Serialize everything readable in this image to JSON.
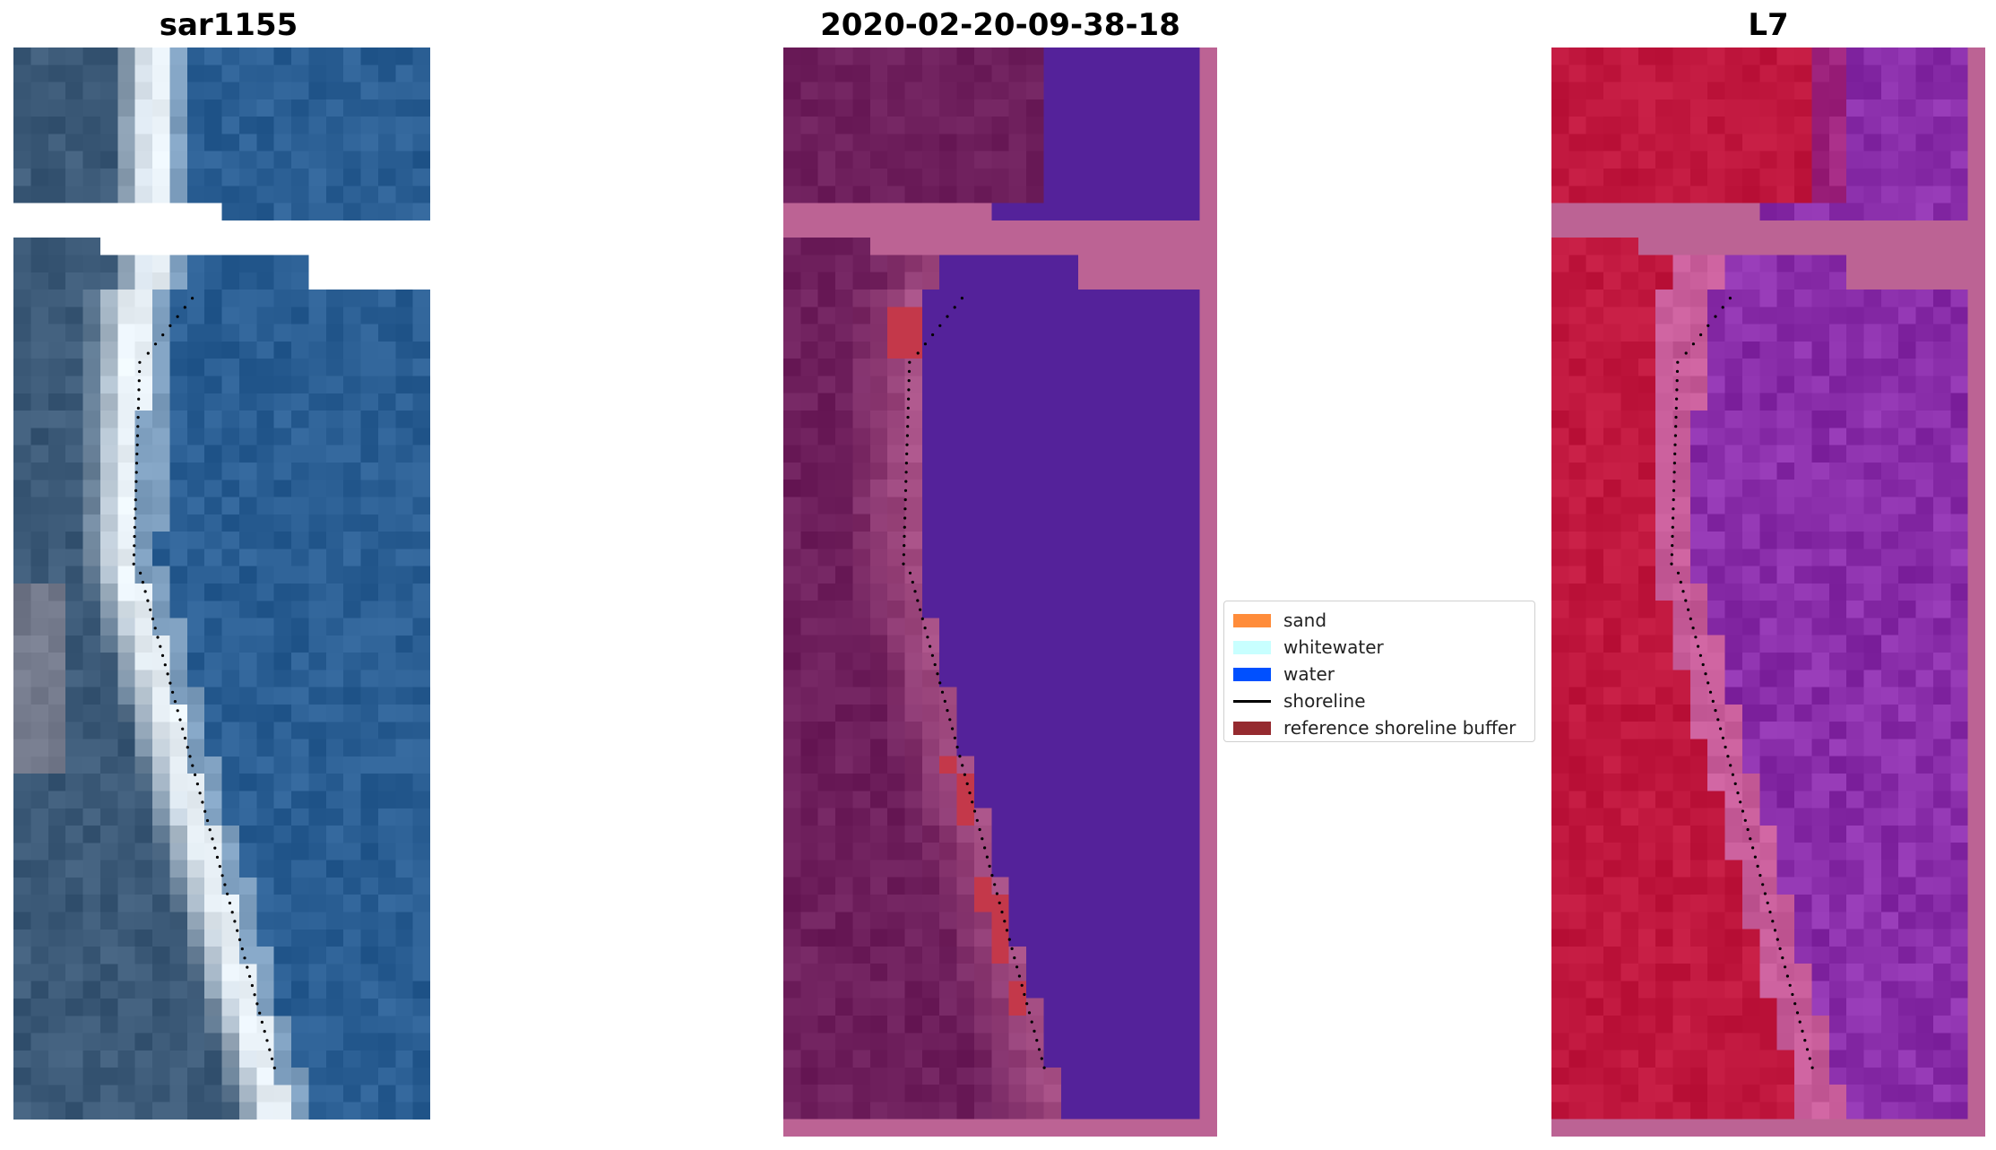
{
  "panels": [
    {
      "title": "sar1155",
      "kind": "rgb"
    },
    {
      "title": "2020-02-20-09-38-18",
      "kind": "classified"
    },
    {
      "title": "L7",
      "kind": "index"
    }
  ],
  "legend": {
    "items": [
      {
        "label": "sand",
        "color": "#ff8c3a",
        "type": "patch"
      },
      {
        "label": "whitewater",
        "color": "#c8ffff",
        "type": "patch"
      },
      {
        "label": "water",
        "color": "#0050ff",
        "type": "patch"
      },
      {
        "label": "shoreline",
        "color": "#000000",
        "type": "line"
      },
      {
        "label": "reference shoreline buffer",
        "color": "#952a2f",
        "type": "patch"
      }
    ]
  },
  "colors": {
    "rgb_water": "#2a5e93",
    "rgb_land": "#3c5a78",
    "rgb_sand": "#e8f0f6",
    "class_land": "#6e1f5c",
    "class_water": "#54229a",
    "class_nodata": "#bc6394",
    "class_buffer": "#c4384a",
    "index_land": "#c0173e",
    "index_water": "#8a2eaa",
    "index_nodata": "#bc6394"
  }
}
